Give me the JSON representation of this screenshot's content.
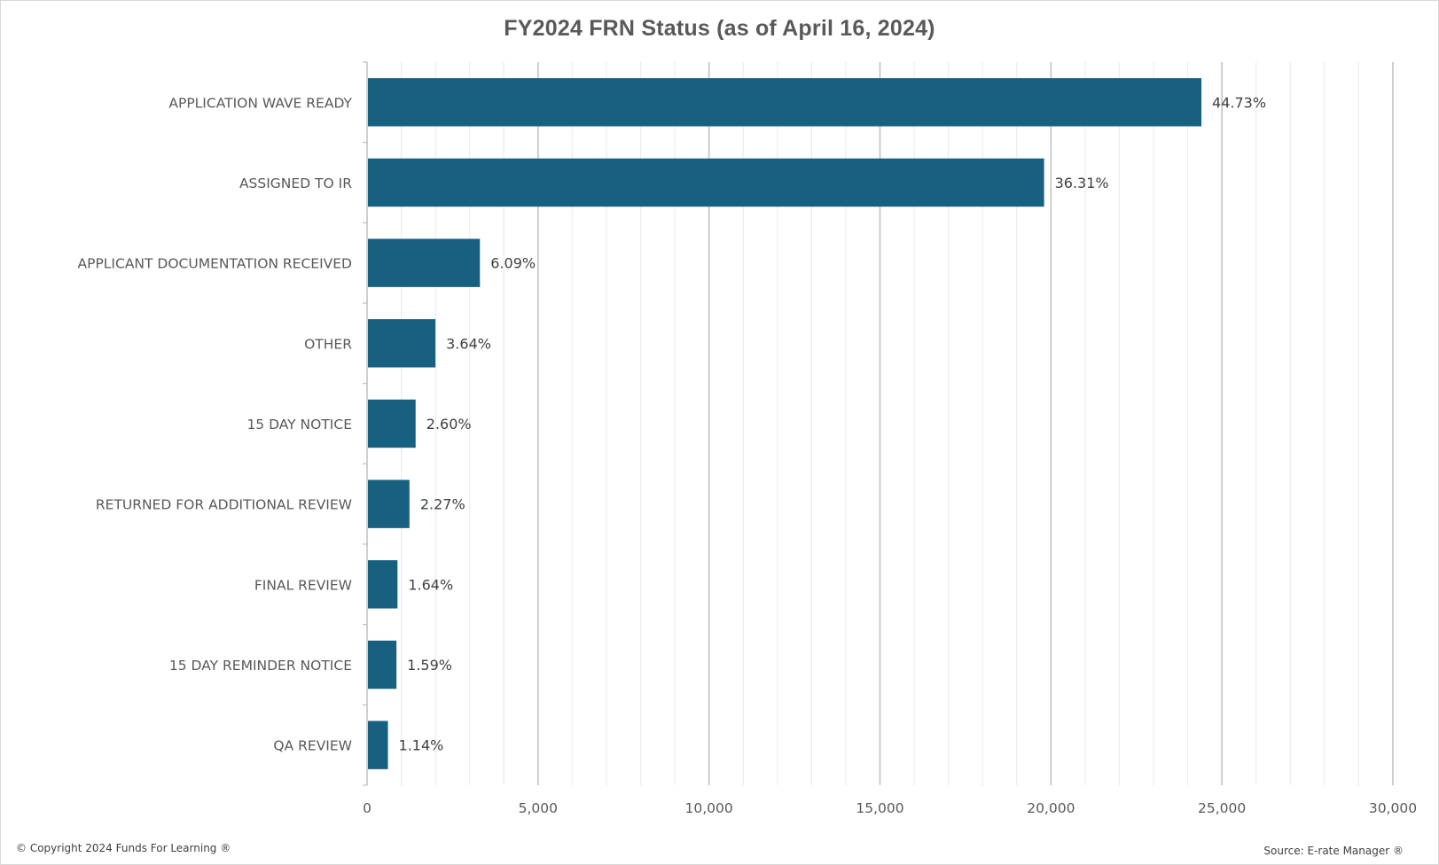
{
  "chart_data": {
    "type": "bar",
    "orientation": "horizontal",
    "title": "FY2024 FRN Status (as of April 16, 2024)",
    "categories": [
      "APPLICATION WAVE READY",
      "ASSIGNED TO IR",
      "APPLICANT DOCUMENTATION RECEIVED",
      "OTHER",
      "15 DAY NOTICE",
      "RETURNED FOR ADDITIONAL REVIEW",
      "FINAL REVIEW",
      "15 DAY REMINDER NOTICE",
      "QA REVIEW"
    ],
    "values": [
      24400,
      19800,
      3300,
      2000,
      1420,
      1240,
      890,
      860,
      610
    ],
    "data_labels": [
      "44.73%",
      "36.31%",
      "6.09%",
      "3.64%",
      "2.60%",
      "2.27%",
      "1.64%",
      "1.59%",
      "1.14%"
    ],
    "xlim": [
      0,
      30000
    ],
    "x_ticks": [
      0,
      5000,
      10000,
      15000,
      20000,
      25000,
      30000
    ],
    "x_tick_labels": [
      "0",
      "5,000",
      "10,000",
      "15,000",
      "20,000",
      "25,000",
      "30,000"
    ],
    "x_minor_step": 1000,
    "grid": true,
    "legend": "none",
    "bar_color": "#17607f"
  },
  "footer": {
    "copyright": "© Copyright 2024 Funds For Learning ®",
    "source": "Source: E-rate Manager ®"
  }
}
